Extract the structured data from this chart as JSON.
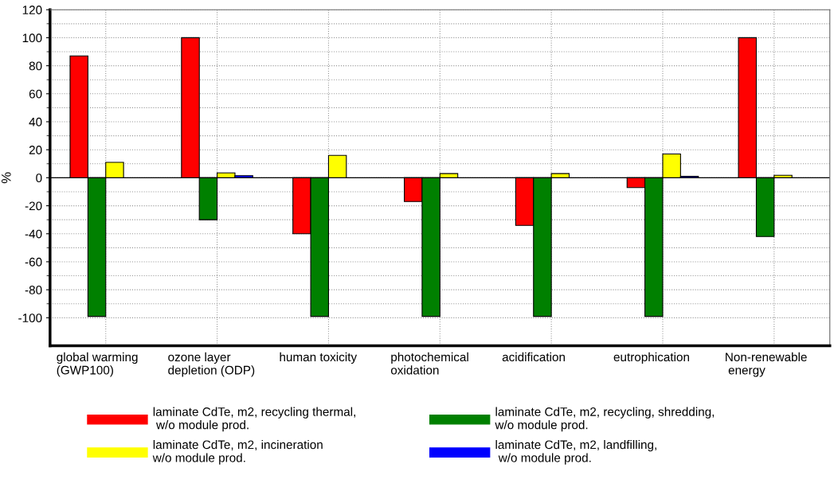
{
  "chart_data": {
    "type": "bar",
    "ylabel": "%",
    "categories": [
      "global warming\n(GWP100)",
      "ozone layer\ndepletion (ODP)",
      "human toxicity",
      "photochemical\noxidation",
      "acidification",
      "eutrophication",
      "Non-renewable\n energy"
    ],
    "series": [
      {
        "name": "laminate CdTe, m2, recycling thermal,\n w/o module prod.",
        "color": "#ff0000",
        "values": [
          87,
          100,
          -40,
          -17,
          -34,
          -7,
          100
        ]
      },
      {
        "name": "laminate CdTe, m2, recycling, shredding,\nw/o module prod.",
        "color": "#008000",
        "values": [
          -99,
          -30,
          -99,
          -99,
          -99,
          -99,
          -42
        ]
      },
      {
        "name": "laminate CdTe, m2, incineration\nw/o module prod.",
        "color": "#ffff00",
        "values": [
          11,
          3.5,
          16,
          3,
          3,
          17,
          1.8
        ]
      },
      {
        "name": "laminate CdTe, m2, landfilling,\n w/o module prod.",
        "color": "#0000ff",
        "values": [
          null,
          1.5,
          null,
          null,
          null,
          1,
          null
        ]
      }
    ],
    "ylim": [
      -120,
      120
    ],
    "yticks": [
      -100,
      -80,
      -60,
      -40,
      -20,
      0,
      20,
      40,
      60,
      80,
      100,
      120
    ],
    "grid": true,
    "legend": "bottom"
  }
}
